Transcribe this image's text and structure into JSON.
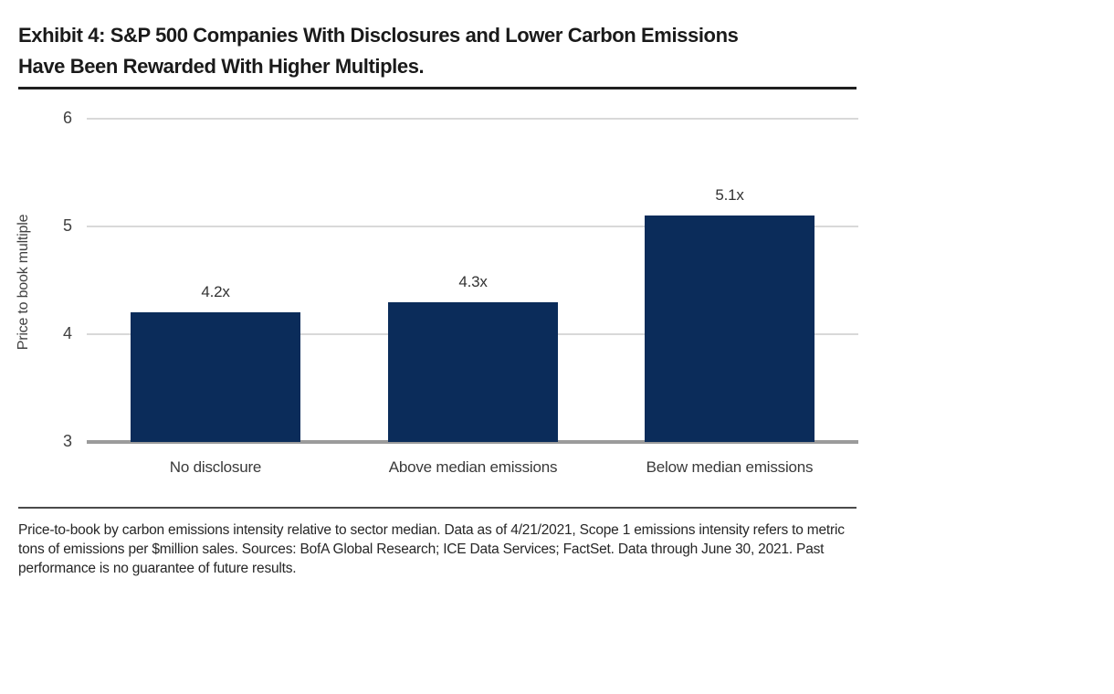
{
  "header": {
    "title_line1": "Exhibit 4: S&P 500 Companies With Disclosures and Lower Carbon Emissions",
    "title_line2": "Have Been Rewarded With Higher Multiples."
  },
  "chart_data": {
    "type": "bar",
    "title": "Exhibit 4: S&P 500 Companies With Disclosures and Lower Carbon Emissions Have Been Rewarded With Higher Multiples.",
    "categories": [
      "No disclosure",
      "Above median emissions",
      "Below median emissions"
    ],
    "values": [
      4.2,
      4.3,
      5.1
    ],
    "value_labels": [
      "4.2x",
      "4.3x",
      "5.1x"
    ],
    "xlabel": "",
    "ylabel": "Price to book multiple",
    "ylim": [
      3,
      6
    ],
    "yticks": [
      3,
      4,
      5,
      6
    ],
    "grid": "horizontal",
    "legend": "none",
    "bar_color": "#0b2c5a",
    "gridline_color": "#d9d9d9",
    "baseline_color": "#9b9b9b"
  },
  "footnote": "Price-to-book by carbon emissions intensity relative to sector median. Data as of 4/21/2021, Scope 1 emissions intensity refers to metric tons of emissions per $million sales. Sources: BofA Global Research; ICE Data Services; FactSet. Data through June 30, 2021. Past performance is no guarantee of future results."
}
